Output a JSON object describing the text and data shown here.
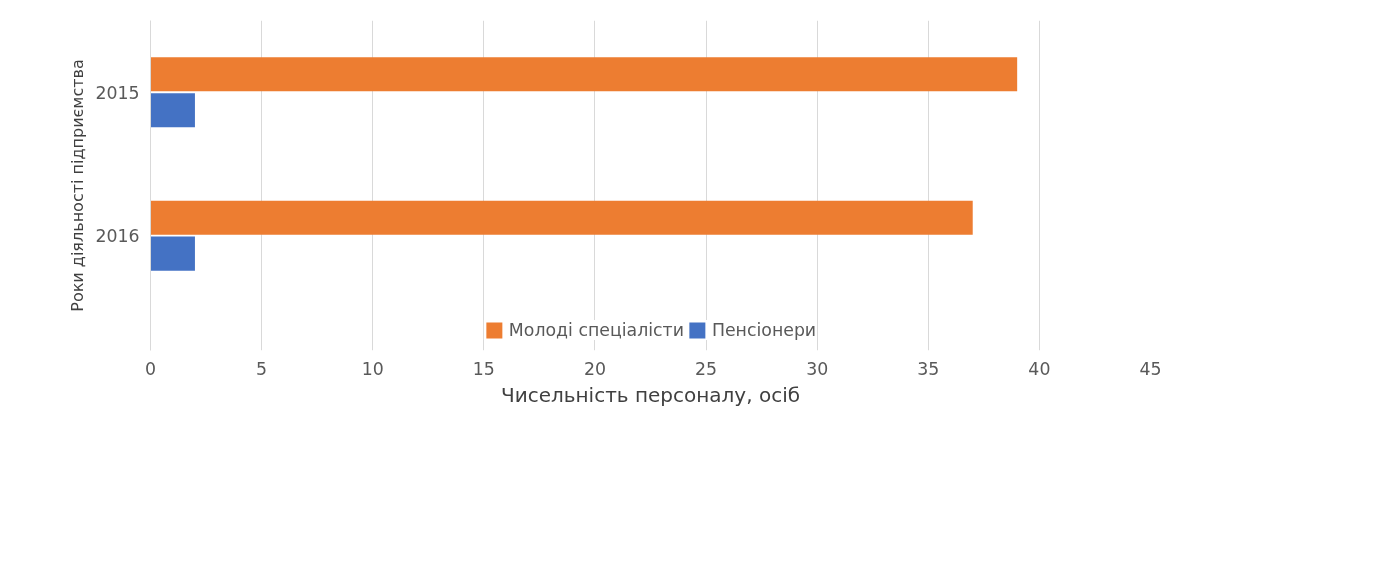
{
  "chart_data": {
    "type": "bar",
    "orientation": "horizontal",
    "categories": [
      "2015",
      "2016"
    ],
    "series": [
      {
        "name": "Молоді спеціалісти",
        "color": "#ed7d31",
        "values": [
          39,
          37
        ]
      },
      {
        "name": "Пенсіонери",
        "color": "#4472c4",
        "values": [
          2,
          2
        ]
      }
    ],
    "xlabel": "Чисельність персоналу, осіб",
    "ylabel": "Роки діяльності підприємства",
    "xlim": [
      0,
      45
    ],
    "xticks": [
      0,
      5,
      10,
      15,
      20,
      25,
      30,
      35,
      40,
      45
    ],
    "grid": "x",
    "legend": "bottom"
  }
}
